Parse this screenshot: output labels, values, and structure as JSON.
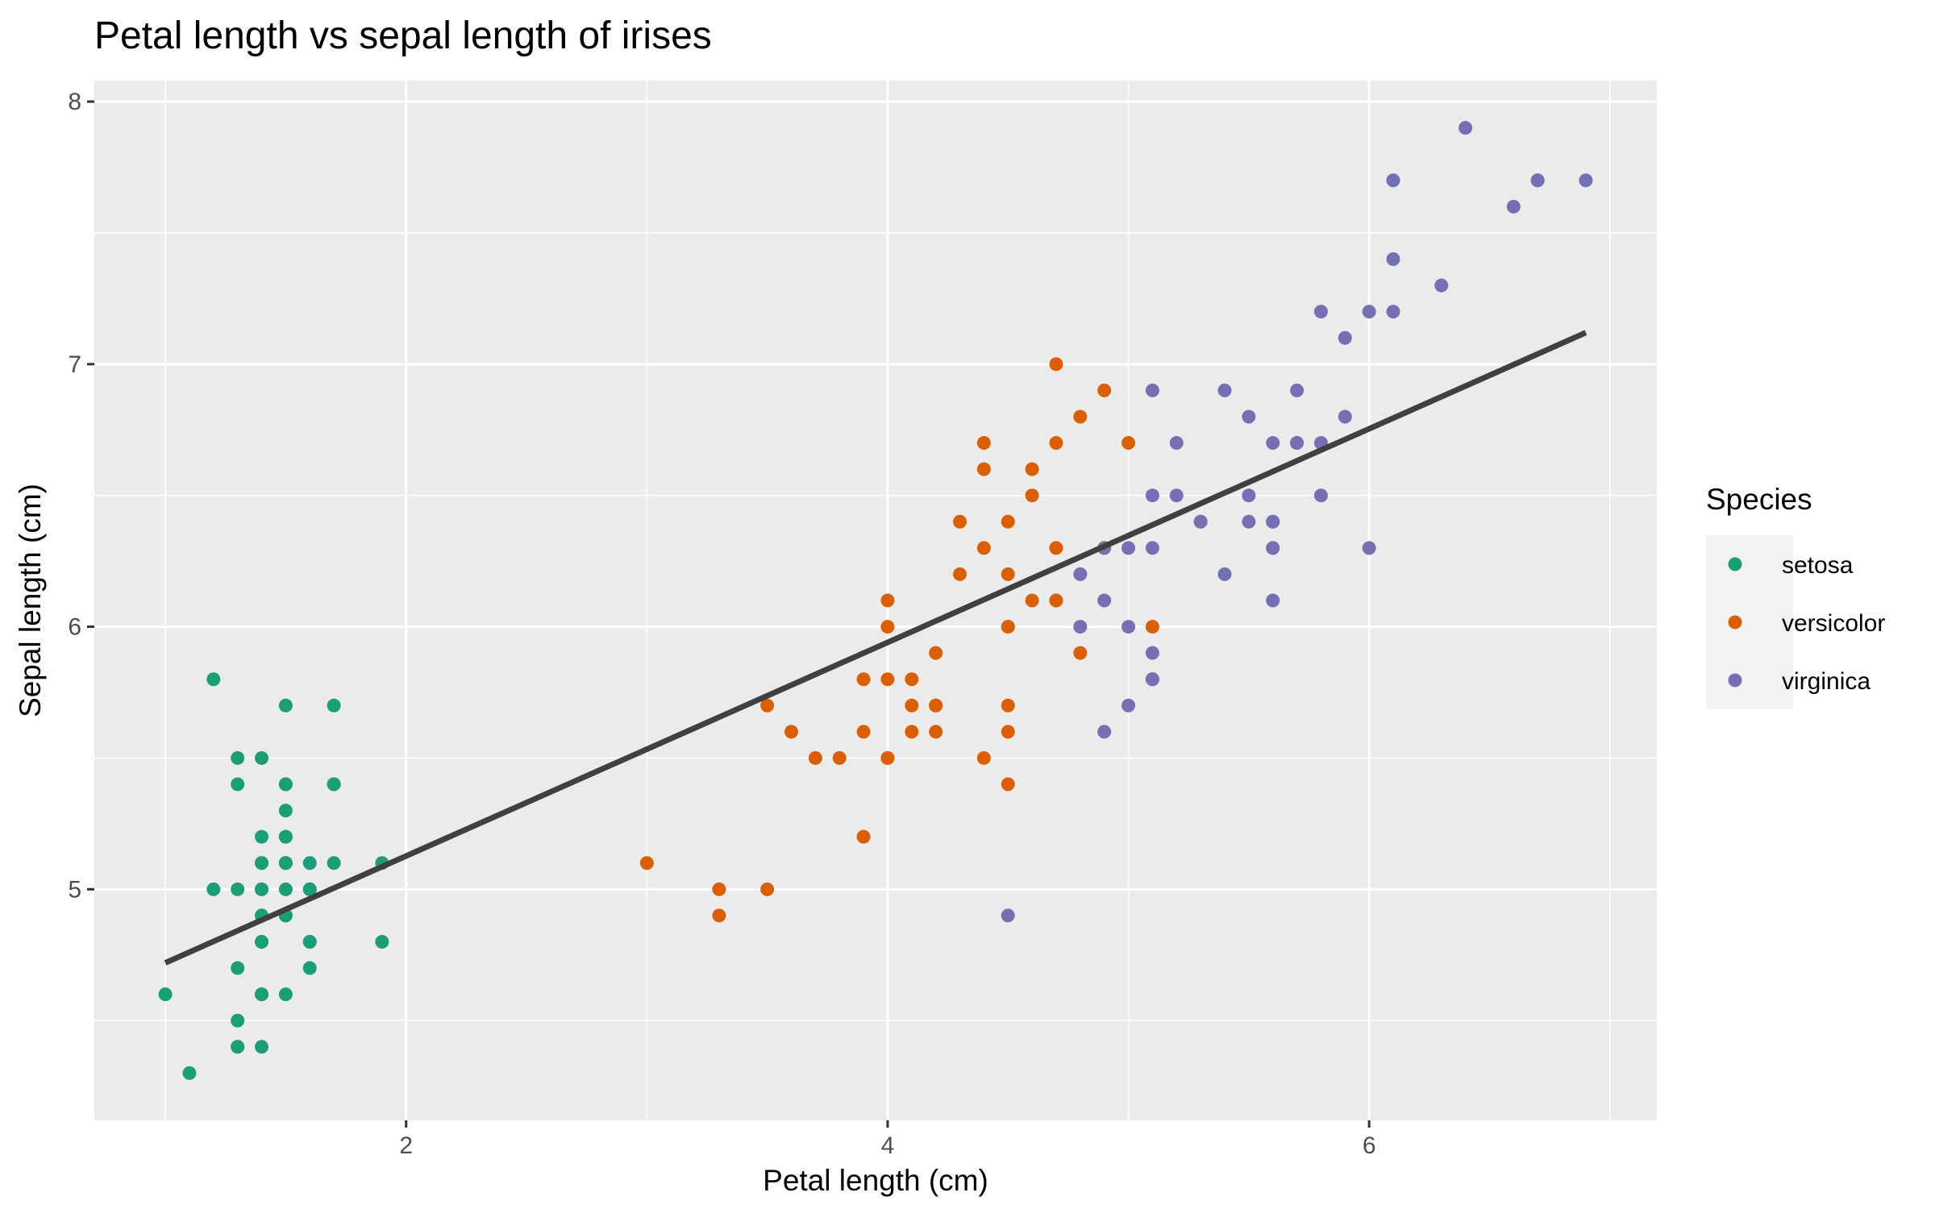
{
  "chart_data": {
    "type": "scatter",
    "title": "Petal length vs sepal length of irises",
    "xlabel": "Petal length (cm)",
    "ylabel": "Sepal length (cm)",
    "xlim": [
      0.705,
      7.195
    ],
    "ylim": [
      4.12,
      8.08
    ],
    "x_ticks": [
      2,
      4,
      6
    ],
    "y_ticks": [
      5,
      6,
      7,
      8
    ],
    "x_tick_labels": [
      "2",
      "4",
      "6"
    ],
    "y_tick_labels": [
      "5",
      "6",
      "7",
      "8"
    ],
    "grid": true,
    "panel_background": "#ebebeb",
    "grid_color": "#ffffff",
    "legend": {
      "title": "Species",
      "position": "right",
      "background": "#f2f2f2"
    },
    "series": [
      {
        "name": "setosa",
        "color": "#1b9e77",
        "points": [
          [
            1.4,
            5.1
          ],
          [
            1.4,
            4.9
          ],
          [
            1.3,
            4.7
          ],
          [
            1.5,
            4.6
          ],
          [
            1.4,
            5.0
          ],
          [
            1.7,
            5.4
          ],
          [
            1.4,
            4.6
          ],
          [
            1.5,
            5.0
          ],
          [
            1.4,
            4.4
          ],
          [
            1.5,
            4.9
          ],
          [
            1.5,
            5.4
          ],
          [
            1.6,
            4.8
          ],
          [
            1.4,
            4.8
          ],
          [
            1.1,
            4.3
          ],
          [
            1.2,
            5.8
          ],
          [
            1.5,
            5.7
          ],
          [
            1.3,
            5.4
          ],
          [
            1.4,
            5.1
          ],
          [
            1.7,
            5.7
          ],
          [
            1.5,
            5.1
          ],
          [
            1.7,
            5.4
          ],
          [
            1.5,
            5.1
          ],
          [
            1.0,
            4.6
          ],
          [
            1.7,
            5.1
          ],
          [
            1.9,
            4.8
          ],
          [
            1.6,
            5.0
          ],
          [
            1.6,
            5.0
          ],
          [
            1.5,
            5.2
          ],
          [
            1.4,
            5.2
          ],
          [
            1.6,
            4.7
          ],
          [
            1.6,
            4.8
          ],
          [
            1.5,
            5.4
          ],
          [
            1.5,
            5.2
          ],
          [
            1.4,
            5.5
          ],
          [
            1.5,
            4.9
          ],
          [
            1.2,
            5.0
          ],
          [
            1.3,
            5.5
          ],
          [
            1.4,
            4.9
          ],
          [
            1.3,
            4.4
          ],
          [
            1.5,
            5.1
          ],
          [
            1.3,
            5.0
          ],
          [
            1.3,
            4.5
          ],
          [
            1.3,
            4.4
          ],
          [
            1.6,
            5.0
          ],
          [
            1.9,
            5.1
          ],
          [
            1.4,
            4.8
          ],
          [
            1.6,
            5.1
          ],
          [
            1.4,
            4.6
          ],
          [
            1.5,
            5.3
          ],
          [
            1.4,
            5.0
          ]
        ]
      },
      {
        "name": "versicolor",
        "color": "#d95f02",
        "points": [
          [
            4.7,
            7.0
          ],
          [
            4.5,
            6.4
          ],
          [
            4.9,
            6.9
          ],
          [
            4.0,
            5.5
          ],
          [
            4.6,
            6.5
          ],
          [
            4.5,
            5.7
          ],
          [
            4.7,
            6.3
          ],
          [
            3.3,
            4.9
          ],
          [
            4.6,
            6.6
          ],
          [
            3.9,
            5.2
          ],
          [
            3.5,
            5.0
          ],
          [
            4.2,
            5.9
          ],
          [
            4.0,
            6.0
          ],
          [
            4.7,
            6.1
          ],
          [
            3.6,
            5.6
          ],
          [
            4.4,
            6.7
          ],
          [
            4.5,
            5.6
          ],
          [
            4.1,
            5.8
          ],
          [
            4.5,
            6.2
          ],
          [
            3.9,
            5.6
          ],
          [
            4.8,
            5.9
          ],
          [
            4.0,
            6.1
          ],
          [
            4.9,
            6.3
          ],
          [
            4.7,
            6.1
          ],
          [
            4.3,
            6.4
          ],
          [
            4.4,
            6.6
          ],
          [
            4.8,
            6.8
          ],
          [
            5.0,
            6.7
          ],
          [
            4.5,
            6.0
          ],
          [
            3.5,
            5.7
          ],
          [
            3.8,
            5.5
          ],
          [
            3.7,
            5.5
          ],
          [
            3.9,
            5.8
          ],
          [
            5.1,
            6.0
          ],
          [
            4.5,
            5.4
          ],
          [
            4.5,
            6.0
          ],
          [
            4.7,
            6.7
          ],
          [
            4.4,
            6.3
          ],
          [
            4.1,
            5.6
          ],
          [
            4.0,
            5.5
          ],
          [
            4.4,
            5.5
          ],
          [
            4.6,
            6.1
          ],
          [
            4.0,
            5.8
          ],
          [
            3.3,
            5.0
          ],
          [
            4.2,
            5.6
          ],
          [
            4.2,
            5.7
          ],
          [
            4.2,
            5.7
          ],
          [
            4.3,
            6.2
          ],
          [
            3.0,
            5.1
          ],
          [
            4.1,
            5.7
          ]
        ]
      },
      {
        "name": "virginica",
        "color": "#7570b3",
        "points": [
          [
            6.0,
            6.3
          ],
          [
            5.1,
            5.8
          ],
          [
            5.9,
            7.1
          ],
          [
            5.6,
            6.3
          ],
          [
            5.8,
            6.5
          ],
          [
            6.6,
            7.6
          ],
          [
            4.5,
            4.9
          ],
          [
            6.3,
            7.3
          ],
          [
            5.8,
            6.7
          ],
          [
            6.1,
            7.2
          ],
          [
            5.1,
            6.5
          ],
          [
            5.3,
            6.4
          ],
          [
            5.5,
            6.8
          ],
          [
            5.0,
            5.7
          ],
          [
            5.1,
            5.8
          ],
          [
            5.3,
            6.4
          ],
          [
            5.5,
            6.5
          ],
          [
            6.7,
            7.7
          ],
          [
            6.9,
            7.7
          ],
          [
            5.0,
            6.0
          ],
          [
            5.7,
            6.9
          ],
          [
            4.9,
            5.6
          ],
          [
            6.7,
            7.7
          ],
          [
            4.9,
            6.3
          ],
          [
            5.7,
            6.7
          ],
          [
            6.0,
            7.2
          ],
          [
            4.8,
            6.2
          ],
          [
            4.9,
            6.1
          ],
          [
            5.6,
            6.4
          ],
          [
            5.8,
            7.2
          ],
          [
            6.1,
            7.4
          ],
          [
            6.4,
            7.9
          ],
          [
            5.6,
            6.4
          ],
          [
            5.1,
            6.3
          ],
          [
            5.6,
            6.1
          ],
          [
            6.1,
            7.7
          ],
          [
            5.6,
            6.3
          ],
          [
            5.5,
            6.4
          ],
          [
            4.8,
            6.0
          ],
          [
            5.4,
            6.9
          ],
          [
            5.6,
            6.7
          ],
          [
            5.1,
            6.9
          ],
          [
            5.1,
            5.8
          ],
          [
            5.9,
            6.8
          ],
          [
            5.7,
            6.7
          ],
          [
            5.2,
            6.7
          ],
          [
            5.0,
            6.3
          ],
          [
            5.2,
            6.5
          ],
          [
            5.4,
            6.2
          ],
          [
            5.1,
            5.9
          ]
        ]
      }
    ],
    "regression_line": {
      "color": "#404040",
      "x": [
        1.0,
        6.9
      ],
      "y": [
        4.72,
        7.12
      ]
    }
  }
}
